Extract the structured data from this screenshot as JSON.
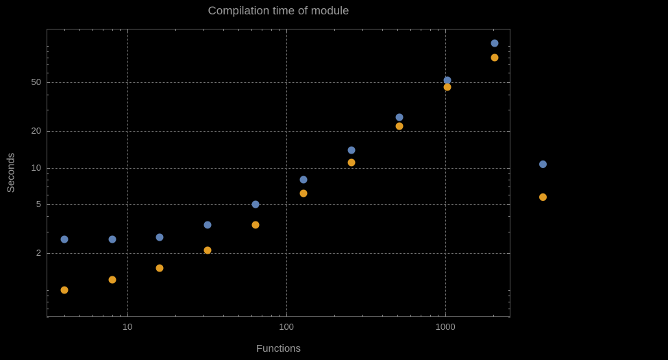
{
  "title": "Compilation time of module",
  "chart_data": {
    "type": "scatter",
    "title": "Compilation time of module",
    "xlabel": "Functions",
    "ylabel": "Seconds",
    "x_scale": "log",
    "y_scale": "log",
    "x_range": [
      3.1,
      2564
    ],
    "y_range": [
      0.6,
      138
    ],
    "x_ticks": [
      10,
      100,
      1000
    ],
    "x_tick_labels": [
      "10",
      "100",
      "1000"
    ],
    "y_ticks": [
      2,
      5,
      10,
      20,
      50
    ],
    "y_tick_labels": [
      "2",
      "5",
      "10",
      "20",
      "50"
    ],
    "grid": "dotted lines at major ticks, framed plot",
    "legend_position": "right of plot, color markers only (no visible labels)",
    "series": [
      {
        "name": "blue-series",
        "color": "#5E81B5",
        "x": [
          4,
          8,
          16,
          32,
          64,
          128,
          256,
          512,
          1024,
          2048
        ],
        "y": [
          2.6,
          2.6,
          2.7,
          3.4,
          5.0,
          8.0,
          14,
          26,
          52,
          105
        ]
      },
      {
        "name": "orange-series",
        "color": "#E19C24",
        "x": [
          4,
          8,
          16,
          32,
          64,
          128,
          256,
          512,
          1024,
          2048
        ],
        "y": [
          1.0,
          1.2,
          1.5,
          2.1,
          3.4,
          6.2,
          11,
          22,
          46,
          80
        ]
      }
    ]
  },
  "styles": {
    "background": "#000000",
    "frame_color": "#5a5a5a",
    "grid_color": "#828282",
    "tick_color": "#8a8a8a",
    "text_color": "#9a9a9a"
  }
}
